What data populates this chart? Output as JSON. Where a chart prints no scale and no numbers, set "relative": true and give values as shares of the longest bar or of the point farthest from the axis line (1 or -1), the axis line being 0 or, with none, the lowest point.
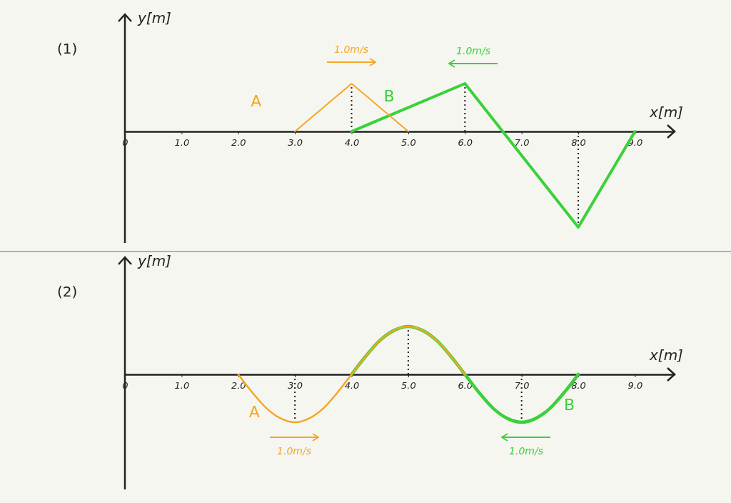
{
  "chart_data": [
    {
      "type": "line",
      "title": "(1)",
      "xlabel": "x[m]",
      "ylabel": "y[m]",
      "relative": true,
      "xlim": [
        0,
        9.7
      ],
      "xticks": [
        {
          "value": 0,
          "label": "0"
        },
        {
          "value": 1,
          "label": "1.0"
        },
        {
          "value": 2,
          "label": "2.0"
        },
        {
          "value": 3,
          "label": "3.0"
        },
        {
          "value": 4,
          "label": "4.0"
        },
        {
          "value": 5,
          "label": "5.0"
        },
        {
          "value": 6,
          "label": "6.0"
        },
        {
          "value": 7,
          "label": "7.0"
        },
        {
          "value": 8,
          "label": "8.0"
        },
        {
          "value": 9,
          "label": "9.0"
        }
      ],
      "series": [
        {
          "name": "A",
          "color": "#f5a623",
          "x": [
            3,
            4,
            5
          ],
          "values": [
            0,
            0.5,
            0
          ]
        },
        {
          "name": "B",
          "color": "#3ad13a",
          "x": [
            4,
            6,
            8,
            9
          ],
          "values": [
            0,
            0.5,
            -1,
            0
          ]
        }
      ],
      "ref_lines": [
        {
          "axis": "x",
          "value": 4,
          "line_style": "dotted"
        },
        {
          "axis": "x",
          "value": 6,
          "line_style": "dotted"
        },
        {
          "axis": "x",
          "value": 8,
          "line_style": "dotted"
        }
      ],
      "annotations": [
        "1.0m/s",
        "1.0m/s"
      ],
      "marker": "none",
      "line_style": "solid",
      "legend": false
    },
    {
      "type": "line",
      "title": "(2)",
      "xlabel": "x[m]",
      "ylabel": "y[m]",
      "relative": true,
      "xlim": [
        0,
        9.7
      ],
      "xticks": [
        {
          "value": 0,
          "label": "0"
        },
        {
          "value": 1,
          "label": "1.0"
        },
        {
          "value": 2,
          "label": "2.0"
        },
        {
          "value": 3,
          "label": "3.0"
        },
        {
          "value": 4,
          "label": "4.0"
        },
        {
          "value": 5,
          "label": "5.0"
        },
        {
          "value": 6,
          "label": "6.0"
        },
        {
          "value": 7,
          "label": "7.0"
        },
        {
          "value": 8,
          "label": "8.0"
        },
        {
          "value": 9,
          "label": "9.0"
        }
      ],
      "series": [
        {
          "name": "A",
          "color": "#f5a623",
          "x": [
            2,
            2.25,
            2.5,
            2.75,
            3,
            3.25,
            3.5,
            3.75,
            4,
            4.25,
            4.5,
            4.75,
            5,
            5.25,
            5.5,
            5.75,
            6
          ],
          "values": [
            0,
            -0.38,
            -0.71,
            -0.92,
            -1,
            -0.92,
            -0.71,
            -0.38,
            0,
            0.38,
            0.71,
            0.92,
            1,
            0.92,
            0.71,
            0.38,
            0
          ]
        },
        {
          "name": "B",
          "color": "#3ad13a",
          "x": [
            4,
            4.25,
            4.5,
            4.75,
            5,
            5.25,
            5.5,
            5.75,
            6,
            6.25,
            6.5,
            6.75,
            7,
            7.25,
            7.5,
            7.75,
            8
          ],
          "values": [
            0,
            0.38,
            0.71,
            0.92,
            1,
            0.92,
            0.71,
            0.38,
            0,
            -0.38,
            -0.71,
            -0.92,
            -1,
            -0.92,
            -0.71,
            -0.38,
            0
          ]
        }
      ],
      "ref_lines": [
        {
          "axis": "x",
          "value": 3,
          "line_style": "dotted"
        },
        {
          "axis": "x",
          "value": 5,
          "line_style": "dotted"
        },
        {
          "axis": "x",
          "value": 7,
          "line_style": "dotted"
        }
      ],
      "annotations": [
        "1.0m/s",
        "1.0m/s"
      ],
      "marker": "none",
      "line_style": "solid",
      "legend": false
    }
  ]
}
